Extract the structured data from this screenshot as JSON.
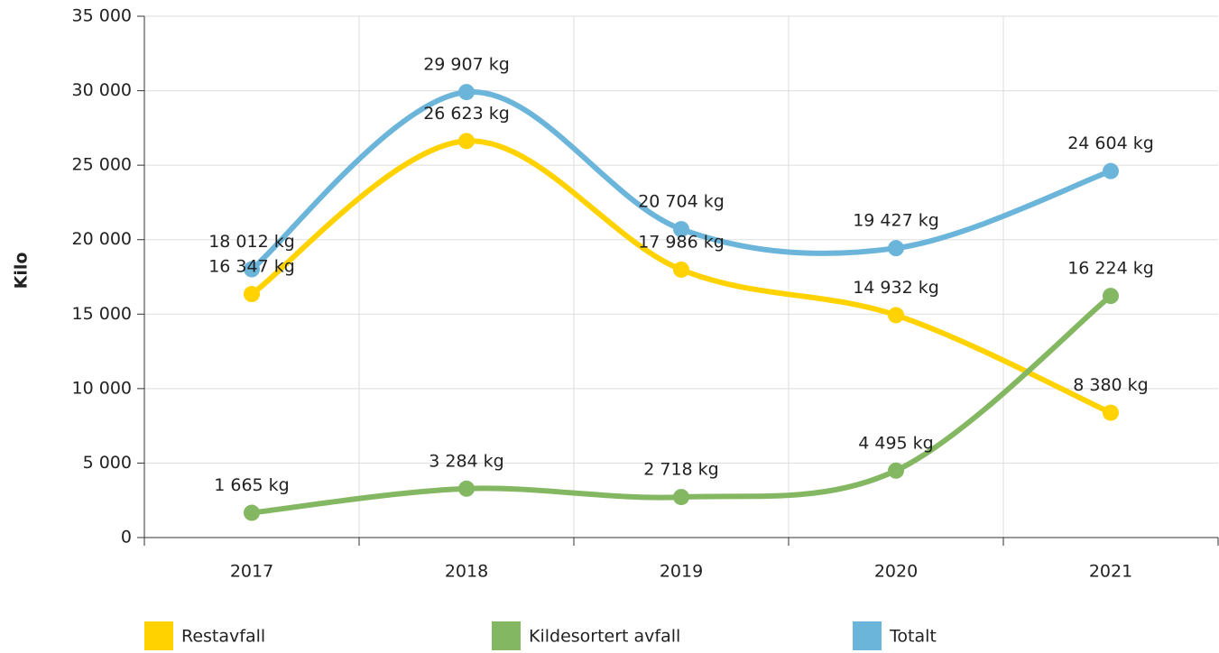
{
  "chart_data": {
    "type": "line",
    "y_label": "Kilo",
    "categories": [
      "2017",
      "2018",
      "2019",
      "2020",
      "2021"
    ],
    "series": [
      {
        "name": "Restavfall",
        "color": "#ffd200",
        "values": [
          16347,
          26623,
          17986,
          14932,
          8380
        ],
        "value_labels": [
          "16 347 kg",
          "26 623 kg",
          "17 986 kg",
          "14 932 kg",
          "8 380 kg"
        ]
      },
      {
        "name": "Kildesortert avfall",
        "color": "#84b761",
        "values": [
          1665,
          3284,
          2718,
          4495,
          16224
        ],
        "value_labels": [
          "1 665 kg",
          "3 284 kg",
          "2 718 kg",
          "4 495 kg",
          "16 224 kg"
        ]
      },
      {
        "name": "Totalt",
        "color": "#6bb5db",
        "values": [
          18012,
          29907,
          20704,
          19427,
          24604
        ],
        "value_labels": [
          "18 012 kg",
          "29 907 kg",
          "20 704 kg",
          "19 427 kg",
          "24 604 kg"
        ]
      }
    ],
    "ylim": [
      0,
      35000
    ],
    "yticks": [
      {
        "value": 0,
        "label": "0"
      },
      {
        "value": 5000,
        "label": "5 000"
      },
      {
        "value": 10000,
        "label": "10 000"
      },
      {
        "value": 15000,
        "label": "15 000"
      },
      {
        "value": 20000,
        "label": "20 000"
      },
      {
        "value": 25000,
        "label": "25 000"
      },
      {
        "value": 30000,
        "label": "30 000"
      },
      {
        "value": 35000,
        "label": "35 000"
      }
    ],
    "grid": true,
    "legend": "bottom"
  }
}
